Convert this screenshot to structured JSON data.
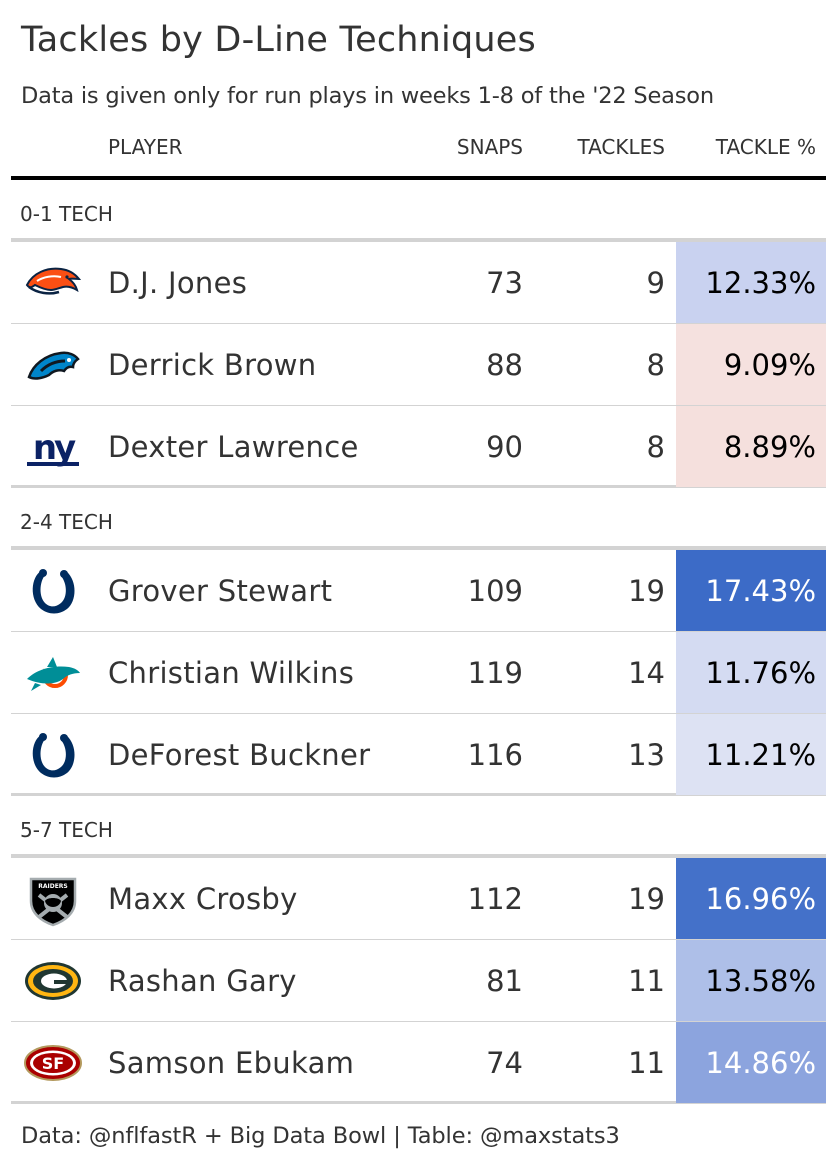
{
  "header": {
    "title": "Tackles by D-Line Techniques",
    "subtitle": "Data is given only for run plays in weeks 1-8 of the '22 Season"
  },
  "columns": {
    "player": "PLAYER",
    "snaps": "SNAPS",
    "tackles": "TACKLES",
    "tackle_pct": "TACKLE %"
  },
  "chart_data": {
    "type": "table",
    "title": "Tackles by D-Line Techniques",
    "subtitle": "Data is given only for run plays in weeks 1-8 of the '22 Season",
    "columns": [
      "PLAYER",
      "SNAPS",
      "TACKLES",
      "TACKLE %"
    ],
    "groups": [
      {
        "label": "0-1 TECH",
        "rows": [
          {
            "team_logo": "broncos-logo-icon",
            "player": "D.J. Jones",
            "snaps": "73",
            "tackles": "9",
            "tackle_pct": "12.33%",
            "tackle_pct_value": 12.33,
            "cell_color": "#c9d2f0",
            "text_color": "#000000"
          },
          {
            "team_logo": "panthers-logo-icon",
            "player": "Derrick Brown",
            "snaps": "88",
            "tackles": "8",
            "tackle_pct": "9.09%",
            "tackle_pct_value": 9.09,
            "cell_color": "#f5e1df",
            "text_color": "#000000"
          },
          {
            "team_logo": "giants-logo-icon",
            "player": "Dexter Lawrence",
            "snaps": "90",
            "tackles": "8",
            "tackle_pct": "8.89%",
            "tackle_pct_value": 8.89,
            "cell_color": "#f5e0dd",
            "text_color": "#000000"
          }
        ]
      },
      {
        "label": "2-4 TECH",
        "rows": [
          {
            "team_logo": "colts-logo-icon",
            "player": "Grover Stewart",
            "snaps": "109",
            "tackles": "19",
            "tackle_pct": "17.43%",
            "tackle_pct_value": 17.43,
            "cell_color": "#3c6bc7",
            "text_color": "#ffffff"
          },
          {
            "team_logo": "dolphins-logo-icon",
            "player": "Christian Wilkins",
            "snaps": "119",
            "tackles": "14",
            "tackle_pct": "11.76%",
            "tackle_pct_value": 11.76,
            "cell_color": "#d4dbf2",
            "text_color": "#000000"
          },
          {
            "team_logo": "colts-logo-icon",
            "player": "DeForest Buckner",
            "snaps": "116",
            "tackles": "13",
            "tackle_pct": "11.21%",
            "tackle_pct_value": 11.21,
            "cell_color": "#dde2f3",
            "text_color": "#000000"
          }
        ]
      },
      {
        "label": "5-7 TECH",
        "rows": [
          {
            "team_logo": "raiders-logo-icon",
            "player": "Maxx Crosby",
            "snaps": "112",
            "tackles": "19",
            "tackle_pct": "16.96%",
            "tackle_pct_value": 16.96,
            "cell_color": "#4471c9",
            "text_color": "#ffffff"
          },
          {
            "team_logo": "packers-logo-icon",
            "player": "Rashan Gary",
            "snaps": "81",
            "tackles": "11",
            "tackle_pct": "13.58%",
            "tackle_pct_value": 13.58,
            "cell_color": "#aebfe8",
            "text_color": "#000000"
          },
          {
            "team_logo": "49ers-logo-icon",
            "player": "Samson Ebukam",
            "snaps": "74",
            "tackles": "11",
            "tackle_pct": "14.86%",
            "tackle_pct_value": 14.86,
            "cell_color": "#8ca4de",
            "text_color": "#ffffff"
          }
        ]
      }
    ]
  },
  "footer": {
    "caption": "Data: @nflfastR + Big Data Bowl | Table: @maxstats3"
  }
}
